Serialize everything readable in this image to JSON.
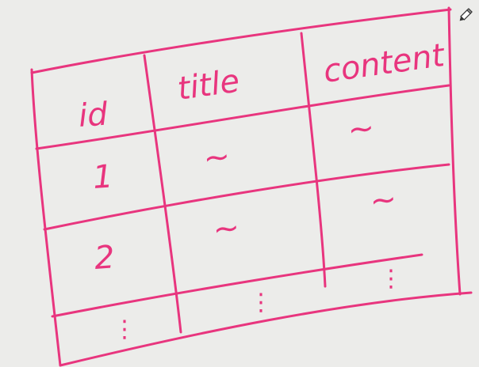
{
  "ink_color": "#e8357e",
  "tool_icon": "pencil-icon",
  "table": {
    "headers": [
      "id",
      "title",
      "content"
    ],
    "rows": [
      [
        "1",
        "~",
        "~"
      ],
      [
        "2",
        "~",
        "~"
      ],
      [
        "⋮",
        "⋮",
        "⋮"
      ]
    ]
  }
}
